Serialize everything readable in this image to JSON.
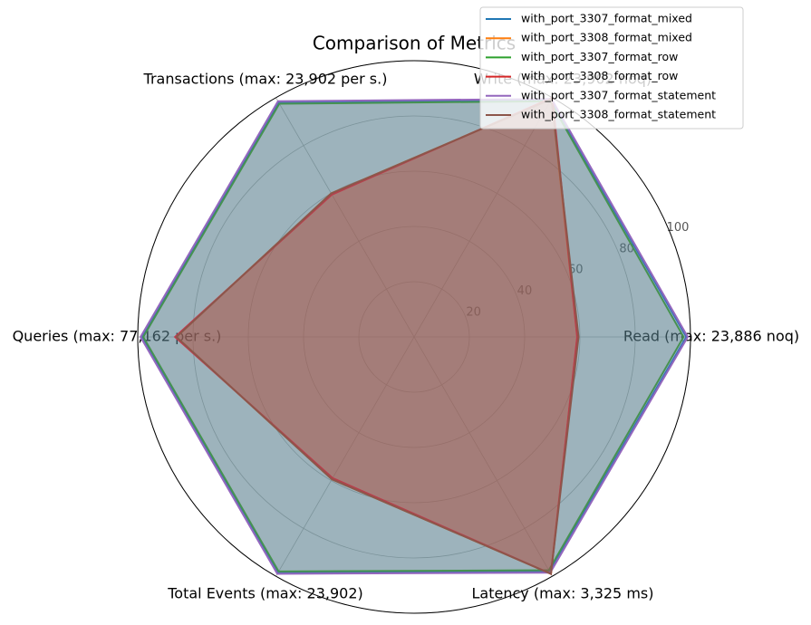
{
  "chart_data": {
    "type": "radar",
    "title": "Comparison of Metrics",
    "categories": [
      "Read (max: 23,886 noq)",
      "Write (max: 23,902 noq)",
      "Transactions (max: 23,902 per s.)",
      "Queries (max: 77,162 per s.)",
      "Total Events (max: 23,902)",
      "Latency (max: 3,325 ms)"
    ],
    "series": [
      {
        "name": "with_port_3307_format_mixed",
        "color": "#1f77b4",
        "values": [
          98.5,
          99,
          98,
          98.5,
          98.5,
          98
        ]
      },
      {
        "name": "with_port_3308_format_mixed",
        "color": "#ff7f0e",
        "values": [
          59,
          99.5,
          60,
          86,
          59.5,
          99
        ]
      },
      {
        "name": "with_port_3307_format_row",
        "color": "#2ca02c",
        "values": [
          97.5,
          98.5,
          97.5,
          98,
          98,
          97.5
        ]
      },
      {
        "name": "with_port_3308_format_row",
        "color": "#d62728",
        "values": [
          59,
          100,
          59.5,
          86.5,
          59,
          99
        ]
      },
      {
        "name": "with_port_3307_format_statement",
        "color": "#9467bd",
        "values": [
          99,
          99.5,
          98.5,
          99,
          99,
          98.5
        ]
      },
      {
        "name": "with_port_3308_format_statement",
        "color": "#8c564b",
        "values": [
          59.5,
          99.5,
          60,
          86,
          59.5,
          99
        ]
      }
    ],
    "ylim": [
      0,
      100
    ],
    "yticks": [
      20,
      40,
      60,
      80,
      100
    ],
    "grid": true,
    "legend": "upper right"
  }
}
